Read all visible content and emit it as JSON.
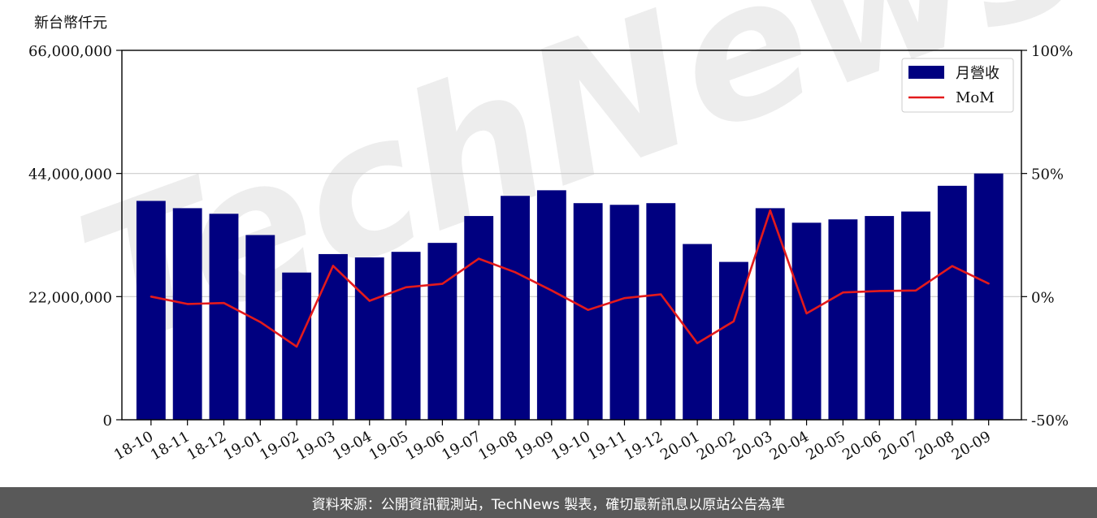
{
  "unit_label": "新台幣仟元",
  "footer_text": "資料來源：公開資訊觀測站，TechNews 製表，確切最新訊息以原站公告為準",
  "watermark_text": "TechNews",
  "colors": {
    "bar": "#000080",
    "line": "#e31a1c",
    "grid": "#cccccc",
    "footer_bg": "#595959"
  },
  "chart_data": {
    "type": "bar",
    "categories": [
      "18-10",
      "18-11",
      "18-12",
      "19-01",
      "19-02",
      "19-03",
      "19-04",
      "19-05",
      "19-06",
      "19-07",
      "19-08",
      "19-09",
      "19-10",
      "19-11",
      "19-12",
      "20-01",
      "20-02",
      "20-03",
      "20-04",
      "20-05",
      "20-06",
      "20-07",
      "20-08",
      "20-09"
    ],
    "series": [
      {
        "name": "月營收",
        "type": "bar",
        "axis": "left",
        "values": [
          39100000,
          37800000,
          36800000,
          33000000,
          26300000,
          29600000,
          29000000,
          30000000,
          31600000,
          36400000,
          40000000,
          41000000,
          38700000,
          38400000,
          38700000,
          31400000,
          28200000,
          37800000,
          35200000,
          35800000,
          36400000,
          37200000,
          41800000,
          44000000
        ]
      },
      {
        "name": "MoM",
        "type": "line",
        "axis": "right",
        "values": [
          0,
          -3,
          -2.6,
          -10.3,
          -20.3,
          12.5,
          -1.7,
          3.8,
          5.2,
          15.4,
          9.9,
          2.5,
          -5.4,
          -0.6,
          0.9,
          -18.9,
          -10,
          35,
          -6.8,
          1.7,
          2.3,
          2.5,
          12.4,
          5.3
        ]
      }
    ],
    "ylim": [
      0,
      66000000
    ],
    "yticks": [
      "0",
      "22,000,000",
      "44,000,000",
      "66,000,000"
    ],
    "y2lim": [
      -50,
      100
    ],
    "y2ticks": [
      "-50%",
      "0%",
      "50%",
      "100%"
    ],
    "grid": "horizontal",
    "legend_position": "top-right"
  }
}
